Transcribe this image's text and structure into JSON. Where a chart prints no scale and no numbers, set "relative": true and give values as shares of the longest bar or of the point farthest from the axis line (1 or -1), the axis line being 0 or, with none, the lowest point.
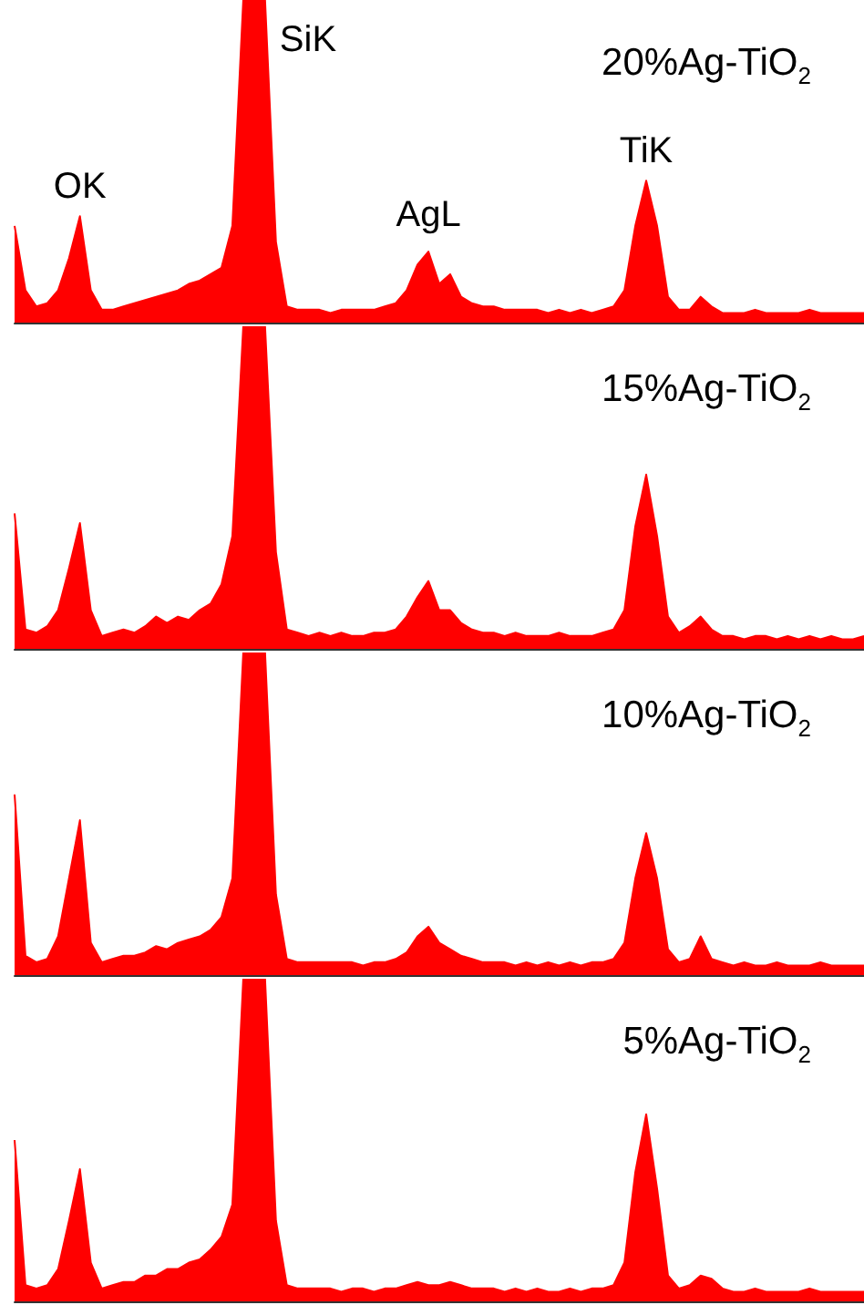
{
  "chart_data": [
    {
      "type": "area",
      "relative": true,
      "title": "20%Ag-TiO$_{2}$",
      "color": "#ff0000",
      "annotations": [
        "OK",
        "SiK",
        "AgL",
        "TiK"
      ],
      "tick_labels": false,
      "categories": [
        null,
        null,
        null,
        null,
        null,
        null,
        null,
        null,
        null,
        null,
        null,
        null,
        null,
        null,
        null,
        null,
        null,
        null,
        null,
        null,
        null,
        null,
        null,
        null,
        null,
        null,
        null,
        null,
        null,
        null,
        null,
        null,
        null,
        null,
        null,
        null,
        null,
        null,
        null,
        null,
        null,
        null,
        null,
        null,
        null,
        null,
        null,
        null,
        null,
        null,
        null,
        null,
        null,
        null,
        null,
        null,
        null,
        null,
        null,
        null,
        null,
        null,
        null,
        null,
        null,
        null,
        null,
        null,
        null,
        null,
        null,
        null,
        null,
        null,
        null,
        null,
        null,
        null,
        null
      ],
      "values": [
        0.3,
        0.1,
        0.05,
        0.06,
        0.1,
        0.2,
        0.33,
        0.1,
        0.04,
        0.04,
        0.05,
        0.06,
        0.07,
        0.08,
        0.09,
        0.1,
        0.12,
        0.13,
        0.15,
        0.17,
        0.3,
        1,
        1,
        1,
        0.25,
        0.05,
        0.04,
        0.04,
        0.04,
        0.03,
        0.04,
        0.04,
        0.04,
        0.04,
        0.05,
        0.06,
        0.1,
        0.18,
        0.22,
        0.12,
        0.15,
        0.08,
        0.06,
        0.05,
        0.05,
        0.04,
        0.04,
        0.04,
        0.04,
        0.03,
        0.04,
        0.03,
        0.04,
        0.03,
        0.04,
        0.05,
        0.1,
        0.3,
        0.44,
        0.3,
        0.08,
        0.04,
        0.04,
        0.08,
        0.05,
        0.03,
        0.03,
        0.03,
        0.04,
        0.03,
        0.03,
        0.03,
        0.03,
        0.04,
        0.03,
        0.03,
        0.03,
        0.03,
        0.03
      ]
    },
    {
      "type": "area",
      "relative": true,
      "title": "15%Ag-TiO$_{2}$",
      "color": "#ff0000",
      "tick_labels": false,
      "categories": [
        null,
        null,
        null,
        null,
        null,
        null,
        null,
        null,
        null,
        null,
        null,
        null,
        null,
        null,
        null,
        null,
        null,
        null,
        null,
        null,
        null,
        null,
        null,
        null,
        null,
        null,
        null,
        null,
        null,
        null,
        null,
        null,
        null,
        null,
        null,
        null,
        null,
        null,
        null,
        null,
        null,
        null,
        null,
        null,
        null,
        null,
        null,
        null,
        null,
        null,
        null,
        null,
        null,
        null,
        null,
        null,
        null,
        null,
        null,
        null,
        null,
        null,
        null,
        null,
        null,
        null,
        null,
        null,
        null,
        null,
        null,
        null,
        null,
        null,
        null,
        null,
        null,
        null,
        null
      ],
      "values": [
        0.42,
        0.06,
        0.05,
        0.07,
        0.12,
        0.25,
        0.39,
        0.12,
        0.04,
        0.05,
        0.06,
        0.05,
        0.07,
        0.1,
        0.08,
        0.1,
        0.09,
        0.12,
        0.14,
        0.2,
        0.35,
        1,
        1,
        1,
        0.3,
        0.06,
        0.05,
        0.04,
        0.05,
        0.04,
        0.05,
        0.04,
        0.04,
        0.05,
        0.05,
        0.06,
        0.1,
        0.16,
        0.21,
        0.12,
        0.12,
        0.08,
        0.06,
        0.05,
        0.05,
        0.04,
        0.05,
        0.04,
        0.04,
        0.04,
        0.05,
        0.04,
        0.04,
        0.04,
        0.05,
        0.06,
        0.12,
        0.38,
        0.54,
        0.35,
        0.1,
        0.05,
        0.07,
        0.1,
        0.06,
        0.04,
        0.04,
        0.03,
        0.04,
        0.04,
        0.03,
        0.04,
        0.03,
        0.04,
        0.03,
        0.04,
        0.03,
        0.03,
        0.04
      ]
    },
    {
      "type": "area",
      "relative": true,
      "title": "10%Ag-TiO$_{2}$",
      "color": "#ff0000",
      "tick_labels": false,
      "categories": [
        null,
        null,
        null,
        null,
        null,
        null,
        null,
        null,
        null,
        null,
        null,
        null,
        null,
        null,
        null,
        null,
        null,
        null,
        null,
        null,
        null,
        null,
        null,
        null,
        null,
        null,
        null,
        null,
        null,
        null,
        null,
        null,
        null,
        null,
        null,
        null,
        null,
        null,
        null,
        null,
        null,
        null,
        null,
        null,
        null,
        null,
        null,
        null,
        null,
        null,
        null,
        null,
        null,
        null,
        null,
        null,
        null,
        null,
        null,
        null,
        null,
        null,
        null,
        null,
        null,
        null,
        null,
        null,
        null,
        null,
        null,
        null,
        null,
        null,
        null,
        null,
        null,
        null,
        null
      ],
      "values": [
        0.56,
        0.06,
        0.04,
        0.05,
        0.12,
        0.3,
        0.48,
        0.1,
        0.04,
        0.05,
        0.06,
        0.06,
        0.07,
        0.09,
        0.08,
        0.1,
        0.11,
        0.12,
        0.14,
        0.18,
        0.3,
        1,
        1,
        1,
        0.25,
        0.05,
        0.04,
        0.04,
        0.04,
        0.04,
        0.04,
        0.04,
        0.03,
        0.04,
        0.04,
        0.05,
        0.07,
        0.12,
        0.15,
        0.1,
        0.08,
        0.06,
        0.05,
        0.04,
        0.04,
        0.04,
        0.03,
        0.04,
        0.03,
        0.04,
        0.03,
        0.04,
        0.03,
        0.04,
        0.04,
        0.05,
        0.1,
        0.3,
        0.44,
        0.3,
        0.08,
        0.04,
        0.05,
        0.12,
        0.05,
        0.04,
        0.03,
        0.04,
        0.03,
        0.03,
        0.04,
        0.03,
        0.03,
        0.03,
        0.04,
        0.03,
        0.03,
        0.03,
        0.03
      ]
    },
    {
      "type": "area",
      "relative": true,
      "title": "5%Ag-TiO$_{2}$",
      "color": "#ff0000",
      "tick_labels": false,
      "categories": [
        null,
        null,
        null,
        null,
        null,
        null,
        null,
        null,
        null,
        null,
        null,
        null,
        null,
        null,
        null,
        null,
        null,
        null,
        null,
        null,
        null,
        null,
        null,
        null,
        null,
        null,
        null,
        null,
        null,
        null,
        null,
        null,
        null,
        null,
        null,
        null,
        null,
        null,
        null,
        null,
        null,
        null,
        null,
        null,
        null,
        null,
        null,
        null,
        null,
        null,
        null,
        null,
        null,
        null,
        null,
        null,
        null,
        null,
        null,
        null,
        null,
        null,
        null,
        null,
        null,
        null,
        null,
        null,
        null,
        null,
        null,
        null,
        null,
        null,
        null,
        null,
        null,
        null,
        null
      ],
      "values": [
        0.5,
        0.05,
        0.04,
        0.05,
        0.1,
        0.25,
        0.41,
        0.12,
        0.04,
        0.05,
        0.06,
        0.06,
        0.08,
        0.08,
        0.1,
        0.1,
        0.12,
        0.13,
        0.16,
        0.2,
        0.3,
        1,
        1,
        1,
        0.25,
        0.05,
        0.04,
        0.04,
        0.04,
        0.04,
        0.03,
        0.04,
        0.04,
        0.03,
        0.04,
        0.04,
        0.05,
        0.06,
        0.05,
        0.05,
        0.06,
        0.05,
        0.04,
        0.04,
        0.04,
        0.03,
        0.04,
        0.03,
        0.04,
        0.03,
        0.03,
        0.04,
        0.03,
        0.04,
        0.04,
        0.05,
        0.12,
        0.4,
        0.58,
        0.35,
        0.08,
        0.04,
        0.05,
        0.08,
        0.07,
        0.04,
        0.03,
        0.03,
        0.04,
        0.03,
        0.03,
        0.03,
        0.03,
        0.04,
        0.03,
        0.03,
        0.03,
        0.03,
        0.03
      ]
    }
  ]
}
